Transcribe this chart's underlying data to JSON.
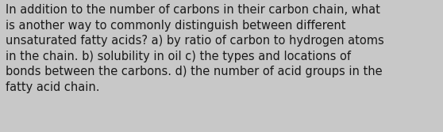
{
  "text": "In addition to the number of carbons in their carbon chain, what\nis another way to commonly distinguish between different\nunsaturated fatty acids? a) by ratio of carbon to hydrogen atoms\nin the chain. b) solubility in oil c) the types and locations of\nbonds between the carbons. d) the number of acid groups in the\nfatty acid chain.",
  "background_color": "#c8c8c8",
  "text_color": "#1a1a1a",
  "font_size": 10.5,
  "font_family": "DejaVu Sans",
  "fig_width": 5.58,
  "fig_height": 1.67,
  "dpi": 100
}
